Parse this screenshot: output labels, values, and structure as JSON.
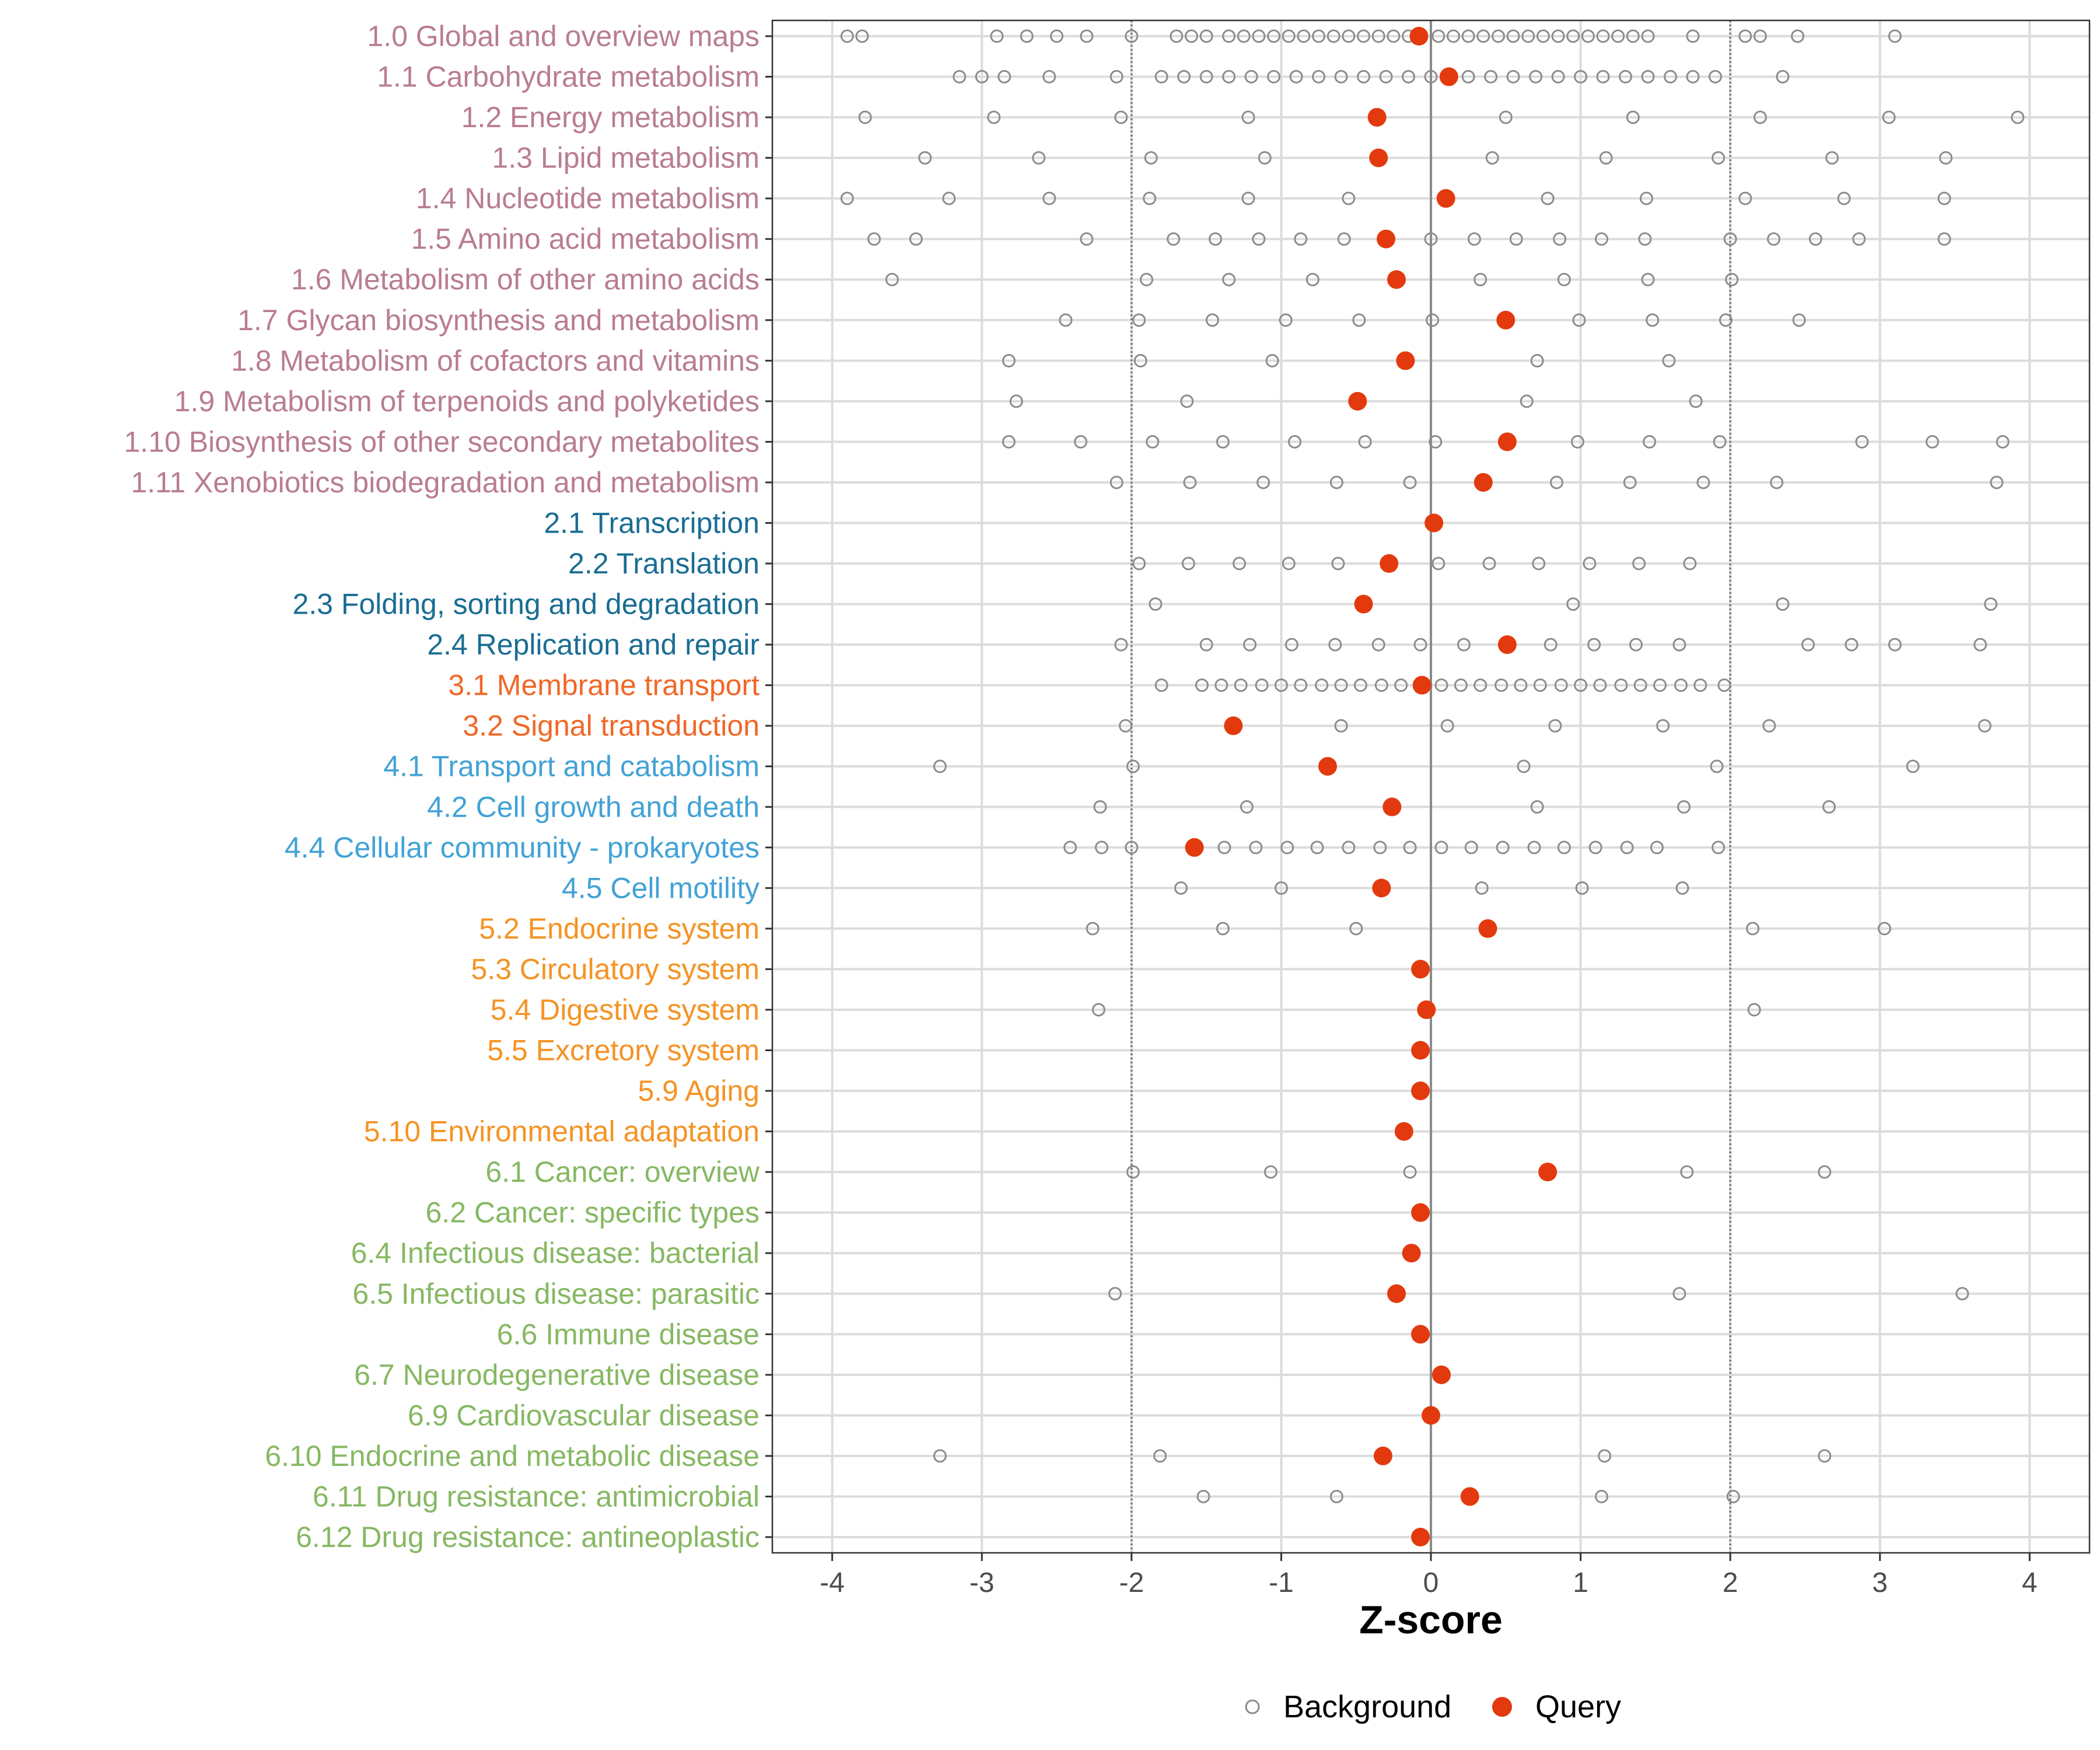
{
  "chart_data": {
    "type": "scatter",
    "title": "",
    "xlabel": "Z-score",
    "ylabel": "",
    "xlim": [
      -4.4,
      4.4
    ],
    "x_ticks": [
      -4,
      -3,
      -2,
      -1,
      0,
      1,
      2,
      3,
      4
    ],
    "x_tick_labels": [
      "-4",
      "-3",
      "-2",
      "-1",
      "0",
      "1",
      "2",
      "3",
      "4"
    ],
    "reference_lines": [
      {
        "x": -2,
        "style": "dotted"
      },
      {
        "x": 0,
        "style": "solid"
      },
      {
        "x": 2,
        "style": "dotted"
      }
    ],
    "grid": true,
    "legend": {
      "position": "bottom",
      "entries": [
        {
          "label": "Background",
          "marker": "open-circle",
          "color": "#888888"
        },
        {
          "label": "Query",
          "marker": "filled-circle",
          "color": "#e23a0e"
        }
      ]
    },
    "group_colors": {
      "1": "#b97d8f",
      "2": "#1a6d93",
      "3": "#f16726",
      "4": "#42a2d6",
      "5": "#f59324",
      "6": "#86b862"
    },
    "categories": [
      {
        "label": "1.0 Global and overview maps",
        "group": "1",
        "query": -0.08,
        "background": [
          -3.9,
          -3.8,
          -2.9,
          -2.7,
          -2.5,
          -2.3,
          -2.0,
          -1.7,
          -1.6,
          -1.5,
          -1.35,
          -1.25,
          -1.15,
          -1.05,
          -0.95,
          -0.85,
          -0.75,
          -0.65,
          -0.55,
          -0.45,
          -0.35,
          -0.25,
          -0.15,
          0.05,
          0.15,
          0.25,
          0.35,
          0.45,
          0.55,
          0.65,
          0.75,
          0.85,
          0.95,
          1.05,
          1.15,
          1.25,
          1.35,
          1.45,
          1.75,
          2.1,
          2.2,
          2.45,
          3.1
        ]
      },
      {
        "label": "1.1 Carbohydrate metabolism",
        "group": "1",
        "query": 0.12,
        "background": [
          -3.15,
          -3.0,
          -2.85,
          -2.55,
          -2.1,
          -1.8,
          -1.65,
          -1.5,
          -1.35,
          -1.2,
          -1.05,
          -0.9,
          -0.75,
          -0.6,
          -0.45,
          -0.3,
          -0.15,
          0.0,
          0.25,
          0.4,
          0.55,
          0.7,
          0.85,
          1.0,
          1.15,
          1.3,
          1.45,
          1.6,
          1.75,
          1.9,
          2.35
        ]
      },
      {
        "label": "1.2 Energy metabolism",
        "group": "1",
        "query": -0.36,
        "background": [
          -3.78,
          -2.92,
          -2.07,
          -1.22,
          0.5,
          1.35,
          2.2,
          3.06,
          3.92
        ]
      },
      {
        "label": "1.3 Lipid metabolism",
        "group": "1",
        "query": -0.35,
        "background": [
          -3.38,
          -2.62,
          -1.87,
          -1.11,
          0.41,
          1.17,
          1.92,
          2.68,
          3.44
        ]
      },
      {
        "label": "1.4 Nucleotide metabolism",
        "group": "1",
        "query": 0.1,
        "background": [
          -3.9,
          -3.22,
          -2.55,
          -1.88,
          -1.22,
          -0.55,
          0.78,
          1.44,
          2.1,
          2.76,
          3.43
        ]
      },
      {
        "label": "1.5 Amino acid metabolism",
        "group": "1",
        "query": -0.3,
        "background": [
          -3.72,
          -3.44,
          -2.3,
          -1.72,
          -1.44,
          -1.15,
          -0.87,
          -0.58,
          0.0,
          0.29,
          0.57,
          0.86,
          1.14,
          1.43,
          2.0,
          2.29,
          2.57,
          2.86,
          3.43
        ]
      },
      {
        "label": "1.6 Metabolism of other amino acids",
        "group": "1",
        "query": -0.23,
        "background": [
          -3.6,
          -1.9,
          -1.35,
          -0.79,
          0.33,
          0.89,
          1.45,
          2.01
        ]
      },
      {
        "label": "1.7 Glycan biosynthesis and metabolism",
        "group": "1",
        "query": 0.5,
        "background": [
          -2.44,
          -1.95,
          -1.46,
          -0.97,
          -0.48,
          0.01,
          0.99,
          1.48,
          1.97,
          2.46
        ]
      },
      {
        "label": "1.8 Metabolism of cofactors and vitamins",
        "group": "1",
        "query": -0.17,
        "background": [
          -2.82,
          -1.94,
          -1.06,
          0.71,
          1.59
        ]
      },
      {
        "label": "1.9 Metabolism of terpenoids and polyketides",
        "group": "1",
        "query": -0.49,
        "background": [
          -2.77,
          -1.63,
          0.64,
          1.77
        ]
      },
      {
        "label": "1.10 Biosynthesis of other secondary metabolites",
        "group": "1",
        "query": 0.51,
        "background": [
          -2.82,
          -2.34,
          -1.86,
          -1.39,
          -0.91,
          -0.44,
          0.03,
          0.98,
          1.46,
          1.93,
          2.88,
          3.35,
          3.82
        ]
      },
      {
        "label": "1.11 Xenobiotics biodegradation and metabolism",
        "group": "1",
        "query": 0.35,
        "background": [
          -2.1,
          -1.61,
          -1.12,
          -0.63,
          -0.14,
          0.84,
          1.33,
          1.82,
          2.31,
          3.78
        ]
      },
      {
        "label": "2.1 Transcription",
        "group": "2",
        "query": 0.02,
        "background": []
      },
      {
        "label": "2.2 Translation",
        "group": "2",
        "query": -0.28,
        "background": [
          -1.95,
          -1.62,
          -1.28,
          -0.95,
          -0.62,
          0.05,
          0.39,
          0.72,
          1.06,
          1.39,
          1.73
        ]
      },
      {
        "label": "2.3 Folding, sorting and degradation",
        "group": "2",
        "query": -0.45,
        "background": [
          -1.84,
          0.95,
          2.35,
          3.74
        ]
      },
      {
        "label": "2.4 Replication and repair",
        "group": "2",
        "query": 0.51,
        "background": [
          -2.07,
          -1.5,
          -1.21,
          -0.93,
          -0.64,
          -0.35,
          -0.07,
          0.22,
          0.8,
          1.09,
          1.37,
          1.66,
          2.52,
          2.81,
          3.1,
          3.67
        ]
      },
      {
        "label": "3.1 Membrane transport",
        "group": "3",
        "query": -0.06,
        "background": [
          -1.8,
          -1.53,
          -1.4,
          -1.27,
          -1.13,
          -1.0,
          -0.87,
          -0.73,
          -0.6,
          -0.47,
          -0.33,
          -0.2,
          0.07,
          0.2,
          0.33,
          0.47,
          0.6,
          0.73,
          0.87,
          1.0,
          1.13,
          1.27,
          1.4,
          1.53,
          1.67,
          1.8,
          1.96
        ]
      },
      {
        "label": "3.2 Signal transduction",
        "group": "3",
        "query": -1.32,
        "background": [
          -2.04,
          -0.6,
          0.11,
          0.83,
          1.55,
          2.26,
          3.7
        ]
      },
      {
        "label": "4.1 Transport and catabolism",
        "group": "4",
        "query": -0.69,
        "background": [
          -3.28,
          -1.99,
          0.62,
          1.91,
          3.22
        ]
      },
      {
        "label": "4.2 Cell growth and death",
        "group": "4",
        "query": -0.26,
        "background": [
          -2.21,
          -1.23,
          0.71,
          1.69,
          2.66
        ]
      },
      {
        "label": "4.4 Cellular community - prokaryotes",
        "group": "4",
        "query": -1.58,
        "background": [
          -2.41,
          -2.2,
          -2.0,
          -1.38,
          -1.17,
          -0.96,
          -0.76,
          -0.55,
          -0.34,
          -0.14,
          0.07,
          0.27,
          0.48,
          0.69,
          0.89,
          1.1,
          1.31,
          1.51,
          1.92
        ]
      },
      {
        "label": "4.5 Cell motility",
        "group": "4",
        "query": -0.33,
        "background": [
          -1.67,
          -1.0,
          0.34,
          1.01,
          1.68
        ]
      },
      {
        "label": "5.2 Endocrine system",
        "group": "5",
        "query": 0.38,
        "background": [
          -2.26,
          -1.39,
          -0.5,
          2.15,
          3.03
        ]
      },
      {
        "label": "5.3 Circulatory system",
        "group": "5",
        "query": -0.07,
        "background": []
      },
      {
        "label": "5.4 Digestive system",
        "group": "5",
        "query": -0.03,
        "background": [
          -2.22,
          2.16
        ]
      },
      {
        "label": "5.5 Excretory system",
        "group": "5",
        "query": -0.07,
        "background": []
      },
      {
        "label": "5.9 Aging",
        "group": "5",
        "query": -0.07,
        "background": []
      },
      {
        "label": "5.10 Environmental adaptation",
        "group": "5",
        "query": -0.18,
        "background": []
      },
      {
        "label": "6.1 Cancer: overview",
        "group": "6",
        "query": 0.78,
        "background": [
          -1.99,
          -1.07,
          -0.14,
          1.71,
          2.63
        ]
      },
      {
        "label": "6.2 Cancer: specific types",
        "group": "6",
        "query": -0.07,
        "background": []
      },
      {
        "label": "6.4 Infectious disease: bacterial",
        "group": "6",
        "query": -0.13,
        "background": []
      },
      {
        "label": "6.5 Infectious disease: parasitic",
        "group": "6",
        "query": -0.23,
        "background": [
          -2.11,
          1.66,
          3.55
        ]
      },
      {
        "label": "6.6 Immune disease",
        "group": "6",
        "query": -0.07,
        "background": []
      },
      {
        "label": "6.7 Neurodegenerative disease",
        "group": "6",
        "query": 0.07,
        "background": []
      },
      {
        "label": "6.9 Cardiovascular disease",
        "group": "6",
        "query": 0.0,
        "background": []
      },
      {
        "label": "6.10 Endocrine and metabolic disease",
        "group": "6",
        "query": -0.32,
        "background": [
          -3.28,
          -1.81,
          1.16,
          2.63
        ]
      },
      {
        "label": "6.11 Drug resistance: antimicrobial",
        "group": "6",
        "query": 0.26,
        "background": [
          -1.52,
          -0.63,
          1.14,
          2.02
        ]
      },
      {
        "label": "6.12 Drug resistance: antineoplastic",
        "group": "6",
        "query": -0.07,
        "background": []
      }
    ]
  }
}
